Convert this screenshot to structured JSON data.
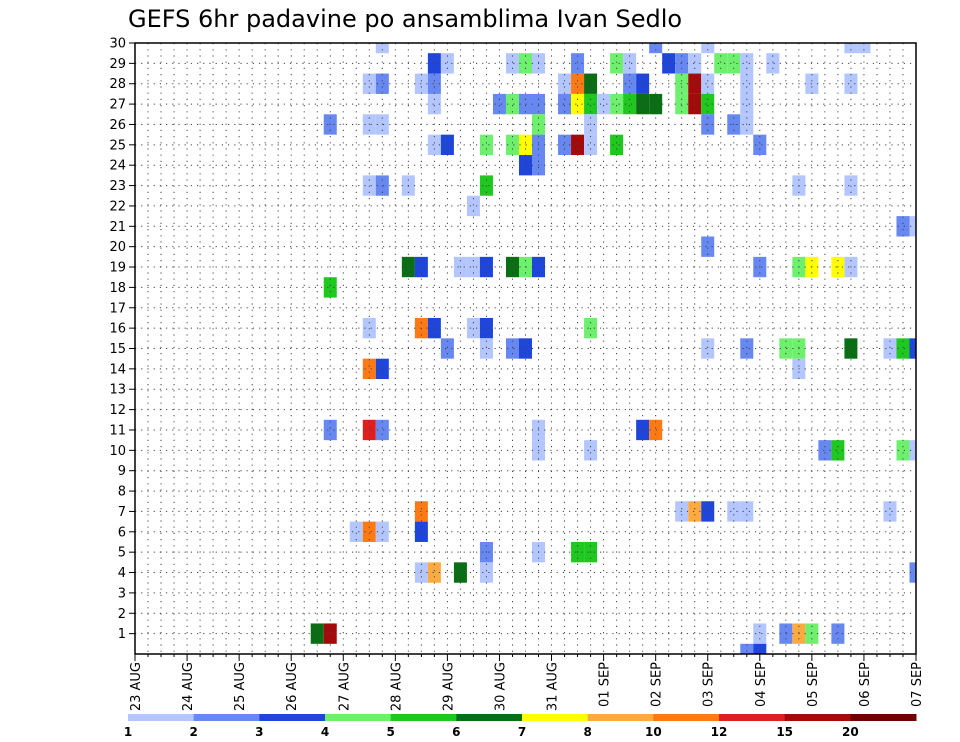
{
  "chart_data": {
    "type": "heatmap",
    "title": "GEFS 6hr padavine po ansamblima Ivan Sedlo",
    "y_ticks": [
      "1",
      "2",
      "3",
      "4",
      "5",
      "6",
      "7",
      "8",
      "9",
      "10",
      "11",
      "12",
      "13",
      "14",
      "15",
      "16",
      "17",
      "18",
      "19",
      "20",
      "21",
      "22",
      "23",
      "24",
      "25",
      "26",
      "27",
      "28",
      "29",
      "30"
    ],
    "x_ticks": [
      "23 AUG",
      "24 AUG",
      "25 AUG",
      "26 AUG",
      "27 AUG",
      "28 AUG",
      "29 AUG",
      "30 AUG",
      "31 AUG",
      "01 SEP",
      "02 SEP",
      "03 SEP",
      "04 SEP",
      "05 SEP",
      "06 SEP",
      "07 SEP"
    ],
    "x_range_steps": [
      0,
      60
    ],
    "y_range": [
      0,
      30
    ],
    "grid": true,
    "colorbar": {
      "labels": [
        "1",
        "2",
        "3",
        "4",
        "5",
        "6",
        "7",
        "8",
        "10",
        "12",
        "15",
        "20"
      ],
      "colors": [
        "#b3c6ff",
        "#6688f0",
        "#1e46dc",
        "#6ef06e",
        "#1ec81e",
        "#0a6e14",
        "#ffff00",
        "#ffaa40",
        "#ff7a14",
        "#e01e1e",
        "#a50a0a",
        "#6e0000"
      ]
    },
    "cells": [
      [
        19,
        30,
        1
      ],
      [
        40,
        30,
        2
      ],
      [
        44,
        30,
        1
      ],
      [
        55,
        30,
        1
      ],
      [
        56,
        30,
        1
      ],
      [
        23,
        29,
        3
      ],
      [
        24,
        29,
        1
      ],
      [
        29,
        29,
        1
      ],
      [
        30,
        29,
        4
      ],
      [
        31,
        29,
        1
      ],
      [
        34,
        29,
        2
      ],
      [
        37,
        29,
        4
      ],
      [
        38,
        29,
        1
      ],
      [
        41,
        29,
        3
      ],
      [
        42,
        29,
        2
      ],
      [
        43,
        29,
        1
      ],
      [
        45,
        29,
        4
      ],
      [
        46,
        29,
        4
      ],
      [
        47,
        29,
        1
      ],
      [
        49,
        29,
        1
      ],
      [
        18,
        28,
        1
      ],
      [
        19,
        28,
        2
      ],
      [
        22,
        28,
        1
      ],
      [
        23,
        28,
        2
      ],
      [
        33,
        28,
        1
      ],
      [
        34,
        28,
        10
      ],
      [
        35,
        28,
        6
      ],
      [
        38,
        28,
        2
      ],
      [
        39,
        28,
        3
      ],
      [
        42,
        28,
        4
      ],
      [
        43,
        28,
        15
      ],
      [
        44,
        28,
        1
      ],
      [
        47,
        28,
        1
      ],
      [
        52,
        28,
        1
      ],
      [
        55,
        28,
        1
      ],
      [
        23,
        27,
        1
      ],
      [
        28,
        27,
        2
      ],
      [
        29,
        27,
        4
      ],
      [
        30,
        27,
        2
      ],
      [
        31,
        27,
        2
      ],
      [
        33,
        27,
        2
      ],
      [
        34,
        27,
        7
      ],
      [
        35,
        27,
        5
      ],
      [
        36,
        27,
        1
      ],
      [
        37,
        27,
        4
      ],
      [
        38,
        27,
        5
      ],
      [
        39,
        27,
        6
      ],
      [
        40,
        27,
        6
      ],
      [
        42,
        27,
        4
      ],
      [
        43,
        27,
        15
      ],
      [
        44,
        27,
        5
      ],
      [
        47,
        27,
        1
      ],
      [
        15,
        26,
        2
      ],
      [
        18,
        26,
        1
      ],
      [
        19,
        26,
        1
      ],
      [
        31,
        26,
        4
      ],
      [
        35,
        26,
        1
      ],
      [
        44,
        26,
        2
      ],
      [
        46,
        26,
        2
      ],
      [
        47,
        26,
        1
      ],
      [
        23,
        25,
        1
      ],
      [
        24,
        25,
        3
      ],
      [
        27,
        25,
        4
      ],
      [
        29,
        25,
        4
      ],
      [
        30,
        25,
        7
      ],
      [
        31,
        25,
        2
      ],
      [
        33,
        25,
        2
      ],
      [
        34,
        25,
        15
      ],
      [
        35,
        25,
        1
      ],
      [
        37,
        25,
        5
      ],
      [
        48,
        25,
        2
      ],
      [
        30,
        24,
        3
      ],
      [
        31,
        24,
        2
      ],
      [
        18,
        23,
        1
      ],
      [
        19,
        23,
        2
      ],
      [
        21,
        23,
        1
      ],
      [
        27,
        23,
        5
      ],
      [
        51,
        23,
        1
      ],
      [
        55,
        23,
        1
      ],
      [
        26,
        22,
        1
      ],
      [
        59,
        21,
        2
      ],
      [
        60,
        21,
        1
      ],
      [
        44,
        20,
        2
      ],
      [
        21,
        19,
        6
      ],
      [
        22,
        19,
        3
      ],
      [
        25,
        19,
        1
      ],
      [
        26,
        19,
        1
      ],
      [
        27,
        19,
        3
      ],
      [
        29,
        19,
        6
      ],
      [
        30,
        19,
        4
      ],
      [
        31,
        19,
        3
      ],
      [
        48,
        19,
        2
      ],
      [
        51,
        19,
        4
      ],
      [
        52,
        19,
        7
      ],
      [
        54,
        19,
        7
      ],
      [
        55,
        19,
        1
      ],
      [
        15,
        18,
        5
      ],
      [
        18,
        16,
        1
      ],
      [
        22,
        16,
        10
      ],
      [
        23,
        16,
        3
      ],
      [
        26,
        16,
        1
      ],
      [
        27,
        16,
        3
      ],
      [
        35,
        16,
        4
      ],
      [
        24,
        15,
        2
      ],
      [
        27,
        15,
        1
      ],
      [
        29,
        15,
        2
      ],
      [
        30,
        15,
        3
      ],
      [
        44,
        15,
        1
      ],
      [
        47,
        15,
        2
      ],
      [
        50,
        15,
        4
      ],
      [
        51,
        15,
        4
      ],
      [
        55,
        15,
        6
      ],
      [
        58,
        15,
        1
      ],
      [
        59,
        15,
        5
      ],
      [
        60,
        15,
        3
      ],
      [
        18,
        14,
        10
      ],
      [
        19,
        14,
        3
      ],
      [
        51,
        14,
        1
      ],
      [
        15,
        11,
        2
      ],
      [
        18,
        11,
        12
      ],
      [
        19,
        11,
        2
      ],
      [
        31,
        11,
        1
      ],
      [
        39,
        11,
        3
      ],
      [
        40,
        11,
        10
      ],
      [
        31,
        10,
        1
      ],
      [
        35,
        10,
        1
      ],
      [
        53,
        10,
        2
      ],
      [
        54,
        10,
        5
      ],
      [
        59,
        10,
        4
      ],
      [
        60,
        10,
        1
      ],
      [
        22,
        7,
        10
      ],
      [
        42,
        7,
        1
      ],
      [
        43,
        7,
        8
      ],
      [
        44,
        7,
        3
      ],
      [
        46,
        7,
        1
      ],
      [
        47,
        7,
        1
      ],
      [
        58,
        7,
        1
      ],
      [
        17,
        6,
        1
      ],
      [
        18,
        6,
        10
      ],
      [
        19,
        6,
        1
      ],
      [
        22,
        6,
        3
      ],
      [
        27,
        5,
        2
      ],
      [
        31,
        5,
        1
      ],
      [
        34,
        5,
        5
      ],
      [
        35,
        5,
        5
      ],
      [
        22,
        4,
        1
      ],
      [
        23,
        4,
        8
      ],
      [
        25,
        4,
        6
      ],
      [
        27,
        4,
        1
      ],
      [
        60,
        4,
        2
      ],
      [
        14,
        1,
        6
      ],
      [
        15,
        1,
        15
      ],
      [
        48,
        1,
        1
      ],
      [
        50,
        1,
        2
      ],
      [
        51,
        1,
        8
      ],
      [
        52,
        1,
        4
      ],
      [
        54,
        1,
        2
      ],
      [
        47,
        0,
        2
      ],
      [
        48,
        0,
        3
      ]
    ]
  }
}
